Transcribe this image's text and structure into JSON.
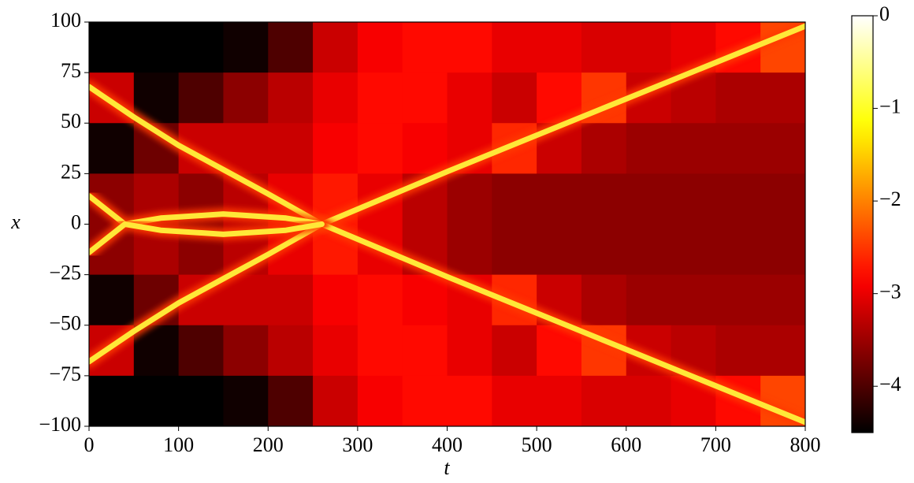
{
  "chart_data": {
    "type": "heatmap",
    "xlabel": "t",
    "ylabel": "x",
    "xlim": [
      0,
      800
    ],
    "ylim": [
      -100,
      100
    ],
    "xticks": [
      0,
      100,
      200,
      300,
      400,
      500,
      600,
      700,
      800
    ],
    "yticks": [
      {
        "value": -100,
        "label": "−100"
      },
      {
        "value": -75,
        "label": "−75"
      },
      {
        "value": -50,
        "label": "−50"
      },
      {
        "value": -25,
        "label": "−25"
      },
      0,
      25,
      50,
      75,
      100
    ],
    "colormap": "hot",
    "clim": [
      -4.5,
      0
    ],
    "cticks": [
      {
        "value": -4,
        "label": "−4"
      },
      {
        "value": -3,
        "label": "−3"
      },
      {
        "value": -2,
        "label": "−2"
      },
      {
        "value": -1,
        "label": "−1"
      },
      0
    ],
    "t_edges": [
      0,
      50,
      100,
      150,
      200,
      250,
      300,
      350,
      400,
      450,
      500,
      550,
      600,
      650,
      700,
      750,
      800
    ],
    "x_edges": [
      100,
      75,
      50,
      25,
      0,
      -25,
      -50,
      -75,
      -100
    ],
    "z": [
      [
        -4.5,
        -4.5,
        -4.5,
        -4.4,
        -4.0,
        -3.2,
        -2.9,
        -2.8,
        -2.8,
        -3.0,
        -3.0,
        -3.1,
        -3.1,
        -3.0,
        -2.8,
        -2.4
      ],
      [
        -3.2,
        -4.4,
        -4.0,
        -3.6,
        -3.3,
        -3.0,
        -2.8,
        -2.8,
        -3.0,
        -3.2,
        -2.8,
        -2.5,
        -3.2,
        -3.3,
        -3.4,
        -3.4
      ],
      [
        -4.4,
        -3.8,
        -3.2,
        -3.2,
        -3.2,
        -2.9,
        -2.8,
        -2.9,
        -3.0,
        -2.6,
        -3.2,
        -3.4,
        -3.5,
        -3.5,
        -3.5,
        -3.5
      ],
      [
        -3.6,
        -3.4,
        -3.6,
        -3.3,
        -3.0,
        -2.7,
        -3.0,
        -3.3,
        -3.5,
        -3.6,
        -3.6,
        -3.6,
        -3.6,
        -3.6,
        -3.6,
        -3.6
      ],
      [
        -3.6,
        -3.4,
        -3.6,
        -3.3,
        -3.0,
        -2.7,
        -3.0,
        -3.3,
        -3.5,
        -3.6,
        -3.6,
        -3.6,
        -3.6,
        -3.6,
        -3.6,
        -3.6
      ],
      [
        -4.4,
        -3.8,
        -3.2,
        -3.2,
        -3.2,
        -2.9,
        -2.8,
        -2.9,
        -3.0,
        -2.6,
        -3.2,
        -3.4,
        -3.5,
        -3.5,
        -3.5,
        -3.5
      ],
      [
        -3.2,
        -4.4,
        -4.0,
        -3.6,
        -3.3,
        -3.0,
        -2.8,
        -2.8,
        -3.0,
        -3.2,
        -2.8,
        -2.5,
        -3.2,
        -3.3,
        -3.4,
        -3.4
      ],
      [
        -4.5,
        -4.5,
        -4.5,
        -4.4,
        -4.0,
        -3.2,
        -2.9,
        -2.8,
        -2.8,
        -3.0,
        -3.0,
        -3.1,
        -3.1,
        -3.0,
        -2.8,
        -2.4
      ]
    ],
    "trajectory_color": "#ffe838",
    "trajectories": [
      {
        "t": [
          0,
          50,
          100,
          150,
          200,
          260,
          400,
          600,
          800
        ],
        "x": [
          68,
          53,
          39,
          27,
          15,
          0,
          26,
          62,
          98
        ]
      },
      {
        "t": [
          0,
          50,
          100,
          150,
          200,
          260,
          400,
          600,
          800
        ],
        "x": [
          -68,
          -53,
          -39,
          -27,
          -15,
          0,
          -26,
          -62,
          -98
        ]
      },
      {
        "t": [
          0,
          40,
          80,
          150,
          220,
          260
        ],
        "x": [
          14,
          0,
          3,
          5,
          3,
          0
        ]
      },
      {
        "t": [
          0,
          40,
          80,
          150,
          220,
          260
        ],
        "x": [
          -14,
          0,
          -3,
          -5,
          -3,
          0
        ]
      }
    ]
  }
}
